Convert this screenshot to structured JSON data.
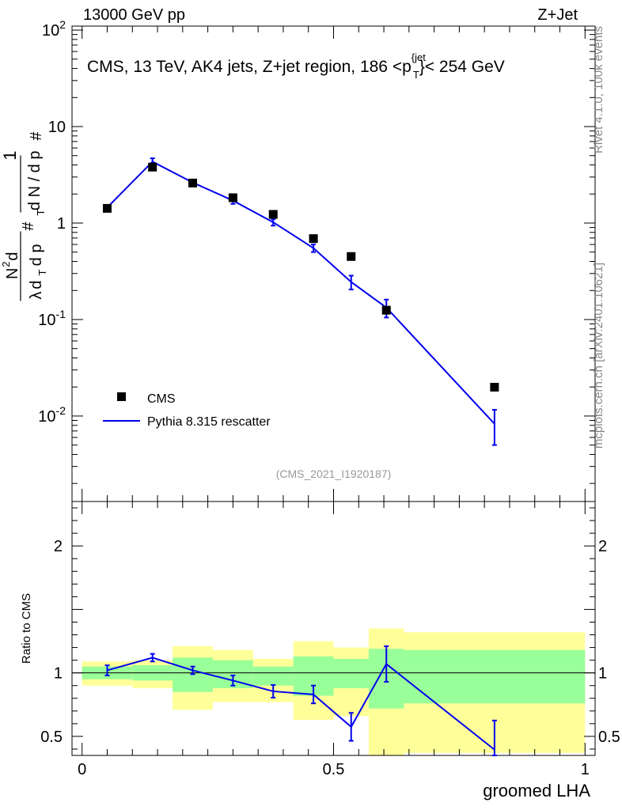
{
  "header": {
    "left": "13000 GeV pp",
    "right": "Z+Jet"
  },
  "side_text": {
    "rivet": "Rivet 4.1.0,  100k events",
    "mcplots": "mcplots.cern.ch [arXiv:2401.10621]"
  },
  "chart_data": [
    {
      "type": "scatter",
      "panel": "main",
      "title_parts": {
        "prefix": "CMS, 13 TeV, AK4 jets, Z+jet region, 186 <p",
        "sub": "T",
        "sup": "{jet",
        "suffix": "}< 254 GeV"
      },
      "ylabel": "1/dN/dpT · d²N/dpT dλ",
      "yscale": "log",
      "ylim": [
        0.0013,
        110
      ],
      "xlim": [
        -0.02,
        1.02
      ],
      "yticks": [
        {
          "base": "10",
          "exp": "-2",
          "value": 0.01
        },
        {
          "base": "10",
          "exp": "-1",
          "value": 0.1
        },
        {
          "base": "1",
          "exp": "",
          "value": 1
        },
        {
          "base": "10",
          "exp": "",
          "value": 10
        },
        {
          "base": "10",
          "exp": "2",
          "value": 100
        }
      ],
      "watermark": "(CMS_2021_I1920187)",
      "legend": {
        "position": "bottom-left",
        "entries": [
          "CMS",
          "Pythia 8.315 rescatter"
        ]
      },
      "series": [
        {
          "name": "CMS",
          "color": "#000000",
          "x": [
            0.05,
            0.14,
            0.22,
            0.3,
            0.38,
            0.46,
            0.535,
            0.605,
            0.82
          ],
          "y": [
            1.42,
            3.8,
            2.6,
            1.83,
            1.23,
            0.69,
            0.45,
            0.125,
            0.0199
          ]
        },
        {
          "name": "Pythia 8.315 rescatter",
          "color": "#0000ee",
          "x": [
            0.05,
            0.14,
            0.22,
            0.3,
            0.38,
            0.46,
            0.535,
            0.605,
            0.82
          ],
          "y": [
            1.45,
            4.33,
            2.63,
            1.71,
            1.02,
            0.55,
            0.245,
            0.133,
            0.0083
          ],
          "err_low": [
            0.09,
            0.36,
            0.17,
            0.13,
            0.08,
            0.05,
            0.04,
            0.028,
            0.0033
          ],
          "err_high": [
            0.09,
            0.36,
            0.17,
            0.13,
            0.08,
            0.05,
            0.04,
            0.028,
            0.0033
          ]
        }
      ]
    },
    {
      "type": "line",
      "panel": "ratio",
      "ylabel": "Ratio to CMS",
      "xlabel": "groomed LHA",
      "ylim": [
        0.35,
        2.35
      ],
      "xlim": [
        -0.02,
        1.02
      ],
      "xticks": [
        "0",
        "0.5",
        "1"
      ],
      "xtick_values": [
        0,
        0.5,
        1
      ],
      "yticks": [
        "0.5",
        "1",
        "2"
      ],
      "ytick_values": [
        0.5,
        1,
        2
      ],
      "reference_line": 1,
      "bands": {
        "edges": [
          0,
          0.1,
          0.18,
          0.26,
          0.34,
          0.42,
          0.5,
          0.57,
          0.64,
          1.0
        ],
        "yellow": [
          [
            0.9,
            1.09
          ],
          [
            0.88,
            1.1
          ],
          [
            0.71,
            1.21
          ],
          [
            0.77,
            1.18
          ],
          [
            0.77,
            1.11
          ],
          [
            0.63,
            1.25
          ],
          [
            0.66,
            1.2
          ],
          [
            0.35,
            1.35
          ],
          [
            0.37,
            1.32
          ]
        ],
        "green": [
          [
            0.95,
            1.05
          ],
          [
            0.94,
            1.06
          ],
          [
            0.85,
            1.12
          ],
          [
            0.88,
            1.1
          ],
          [
            0.9,
            1.05
          ],
          [
            0.82,
            1.13
          ],
          [
            0.88,
            1.11
          ],
          [
            0.72,
            1.19
          ],
          [
            0.76,
            1.18
          ]
        ]
      },
      "series": [
        {
          "name": "Pythia 8.315 rescatter / CMS",
          "color": "#0000ee",
          "x": [
            0.05,
            0.14,
            0.22,
            0.3,
            0.38,
            0.46,
            0.535,
            0.605,
            0.82
          ],
          "y": [
            1.02,
            1.12,
            1.02,
            0.94,
            0.855,
            0.83,
            0.575,
            1.07,
            0.395
          ],
          "err_low": [
            0.04,
            0.03,
            0.03,
            0.04,
            0.05,
            0.07,
            0.11,
            0.14,
            0.05
          ],
          "err_high": [
            0.04,
            0.03,
            0.03,
            0.04,
            0.05,
            0.07,
            0.11,
            0.14,
            0.23
          ]
        }
      ]
    }
  ]
}
